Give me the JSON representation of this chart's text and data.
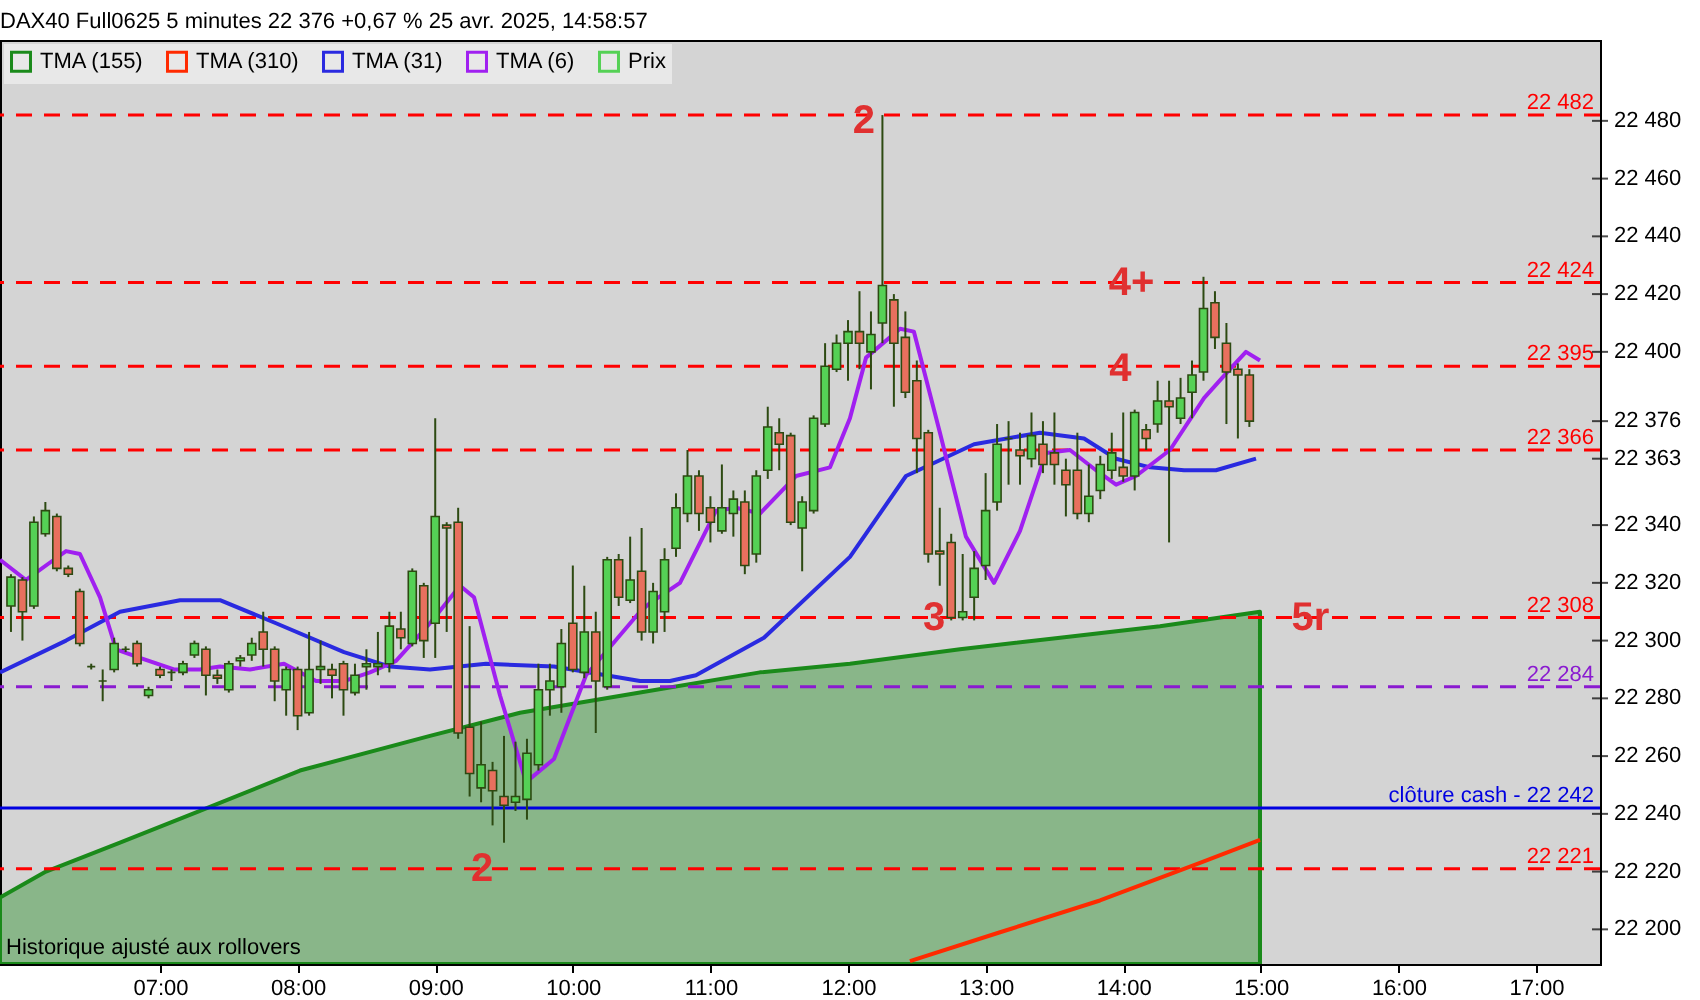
{
  "chart_data": {
    "type": "candlestick",
    "title": "DAX40 Full0625 5 minutes 22 376 +0,67 % 25 avr. 2025, 14:58:57",
    "xlim": [
      5.837,
      17.465
    ],
    "xticks": [
      {
        "value": 7,
        "label": "07:00"
      },
      {
        "value": 8,
        "label": "08:00"
      },
      {
        "value": 9,
        "label": "09:00"
      },
      {
        "value": 10,
        "label": "10:00"
      },
      {
        "value": 11,
        "label": "11:00"
      },
      {
        "value": 12,
        "label": "12:00"
      },
      {
        "value": 13,
        "label": "13:00"
      },
      {
        "value": 14,
        "label": "14:00"
      },
      {
        "value": 15,
        "label": "15:00"
      },
      {
        "value": 16,
        "label": "16:00"
      },
      {
        "value": 17,
        "label": "17:00"
      }
    ],
    "ylim": [
      22188,
      22508
    ],
    "yticks": [
      {
        "value": 22200,
        "label": "22 200"
      },
      {
        "value": 22220,
        "label": "22 220"
      },
      {
        "value": 22240,
        "label": "22 240"
      },
      {
        "value": 22260,
        "label": "22 260"
      },
      {
        "value": 22280,
        "label": "22 280"
      },
      {
        "value": 22300,
        "label": "22 300"
      },
      {
        "value": 22320,
        "label": "22 320"
      },
      {
        "value": 22340,
        "label": "22 340"
      },
      {
        "value": 22363,
        "label": "22 363"
      },
      {
        "value": 22376,
        "label": "22 376"
      },
      {
        "value": 22400,
        "label": "22 400"
      },
      {
        "value": 22420,
        "label": "22 420"
      },
      {
        "value": 22440,
        "label": "22 440"
      },
      {
        "value": 22460,
        "label": "22 460"
      },
      {
        "value": 22480,
        "label": "22 480"
      }
    ],
    "legend": "top left",
    "series": [
      {
        "name": "TMA (155)",
        "type": "area",
        "color": "#1a8a1a",
        "x": [
          5.837,
          6.171,
          6.709,
          7.29,
          8.017,
          8.962,
          9.616,
          10.488,
          11.36,
          12.014,
          12.814,
          13.541,
          14.267,
          14.994
        ],
        "values": [
          22211,
          22220,
          22230,
          22241,
          22255,
          22267,
          22275,
          22282,
          22289,
          22292,
          22297,
          22301,
          22305,
          22310
        ]
      },
      {
        "name": "TMA (310)",
        "type": "line",
        "color": "#ff2a00",
        "x": [
          12.45,
          13.105,
          13.831,
          14.558,
          14.994
        ],
        "values": [
          22189,
          22199,
          22210,
          22223,
          22231
        ]
      },
      {
        "name": "TMA (31)",
        "type": "line",
        "color": "#2a2ae0",
        "x": [
          5.837,
          6.317,
          6.709,
          7.145,
          7.436,
          7.843,
          8.337,
          8.671,
          8.962,
          9.369,
          9.863,
          10.488,
          10.706,
          10.895,
          11.389,
          12.014,
          12.421,
          12.916,
          13.395,
          13.715,
          13.948,
          14.195,
          14.442,
          14.674,
          14.965
        ],
        "values": [
          22289,
          22300,
          22310,
          22314,
          22314,
          22306,
          22296,
          22291,
          22290,
          22292,
          22291,
          22286,
          22286,
          22288,
          22301,
          22329,
          22357,
          22368,
          22372,
          22370,
          22363,
          22360,
          22359,
          22359,
          22363
        ]
      },
      {
        "name": "TMA (6)",
        "type": "line",
        "color": "#a020f0",
        "x": [
          5.837,
          6.026,
          6.229,
          6.317,
          6.418,
          6.564,
          6.68,
          6.854,
          7.101,
          7.29,
          7.436,
          7.654,
          7.901,
          8.134,
          8.337,
          8.526,
          8.715,
          8.962,
          9.18,
          9.282,
          9.471,
          9.66,
          9.863,
          10.096,
          10.488,
          10.561,
          10.779,
          11.041,
          11.186,
          11.36,
          11.622,
          11.869,
          12.014,
          12.131,
          12.378,
          12.479,
          12.668,
          12.857,
          13.061,
          13.25,
          13.439,
          13.613,
          13.802,
          13.948,
          14.093,
          14.34,
          14.587,
          14.776,
          14.892,
          14.994
        ],
        "values": [
          22328,
          22321,
          22328,
          22331,
          22330,
          22315,
          22297,
          22294,
          22290,
          22290,
          22291,
          22290,
          22292,
          22286,
          22286,
          22289,
          22293,
          22306,
          22319,
          22315,
          22281,
          22251,
          22259,
          22288,
          22310,
          22313,
          22320,
          22345,
          22346,
          22344,
          22357,
          22360,
          22377,
          22398,
          22408,
          22407,
          22372,
          22336,
          22320,
          22338,
          22365,
          22366,
          22359,
          22354,
          22357,
          22366,
          22384,
          22394,
          22400,
          22397
        ]
      },
      {
        "name": "Prix",
        "type": "candlestick",
        "color": "#55d155",
        "x": [
          5.9167,
          6,
          6.0833,
          6.1667,
          6.25,
          6.3333,
          6.4167,
          6.5,
          6.5833,
          6.6667,
          6.75,
          6.8333,
          6.9167,
          7,
          7.0833,
          7.1667,
          7.25,
          7.3333,
          7.4167,
          7.5,
          7.5833,
          7.6667,
          7.75,
          7.8333,
          7.9167,
          8,
          8.0833,
          8.1667,
          8.25,
          8.3333,
          8.4167,
          8.5,
          8.5833,
          8.6667,
          8.75,
          8.8333,
          8.9167,
          9,
          9.0833,
          9.1667,
          9.25,
          9.3333,
          9.4167,
          9.5,
          9.5833,
          9.6667,
          9.75,
          9.8333,
          9.9167,
          10,
          10.0833,
          10.1667,
          10.25,
          10.3333,
          10.4167,
          10.5,
          10.5833,
          10.6667,
          10.75,
          10.8333,
          10.9167,
          11,
          11.0833,
          11.1667,
          11.25,
          11.3333,
          11.4167,
          11.5,
          11.5833,
          11.6667,
          11.75,
          11.8333,
          11.9167,
          12,
          12.0833,
          12.1667,
          12.25,
          12.3333,
          12.4167,
          12.5,
          12.5833,
          12.6667,
          12.75,
          12.8333,
          12.9167,
          13,
          13.0833,
          13.1667,
          13.25,
          13.3333,
          13.4167,
          13.5,
          13.5833,
          13.6667,
          13.75,
          13.8333,
          13.9167,
          14,
          14.0833,
          14.1667,
          14.25,
          14.3333,
          14.4167,
          14.5,
          14.5833,
          14.6667,
          14.75,
          14.8333,
          14.9167
        ],
        "ohlc": [
          [
            22312,
            22323,
            22303,
            22322
          ],
          [
            22321,
            22322,
            22300,
            22310
          ],
          [
            22312,
            22343,
            22311,
            22341
          ],
          [
            22337,
            22348,
            22336,
            22345
          ],
          [
            22343,
            22344,
            22324,
            22325
          ],
          [
            22325,
            22326,
            22322,
            22323
          ],
          [
            22317,
            22318,
            22298,
            22299
          ],
          [
            22291,
            22292,
            22290,
            22291
          ],
          [
            22286,
            22290,
            22279,
            22286
          ],
          [
            22290,
            22301,
            22289,
            22299
          ],
          [
            22297,
            22298,
            22296,
            22297
          ],
          [
            22299,
            22300,
            22291,
            22292
          ],
          [
            22281,
            22284,
            22280,
            22283
          ],
          [
            22290,
            22291,
            22287,
            22288
          ],
          [
            22289,
            22290,
            22286,
            22289
          ],
          [
            22289,
            22293,
            22288,
            22292
          ],
          [
            22295,
            22300,
            22294,
            22299
          ],
          [
            22297,
            22298,
            22281,
            22288
          ],
          [
            22288,
            22290,
            22285,
            22287
          ],
          [
            22283,
            22293,
            22282,
            22292
          ],
          [
            22293,
            22295,
            22291,
            22294
          ],
          [
            22295,
            22301,
            22293,
            22299
          ],
          [
            22303,
            22310,
            22291,
            22297
          ],
          [
            22297,
            22298,
            22279,
            22286
          ],
          [
            22283,
            22291,
            22274,
            22290
          ],
          [
            22290,
            22291,
            22269,
            22274
          ],
          [
            22275,
            22303,
            22274,
            22290
          ],
          [
            22290,
            22300,
            22285,
            22291
          ],
          [
            22290,
            22292,
            22280,
            22288
          ],
          [
            22292,
            22293,
            22274,
            22283
          ],
          [
            22282,
            22292,
            22281,
            22288
          ],
          [
            22291,
            22297,
            22283,
            22292
          ],
          [
            22291,
            22303,
            22288,
            22292
          ],
          [
            22292,
            22310,
            22289,
            22305
          ],
          [
            22304,
            22310,
            22297,
            22301
          ],
          [
            22299,
            22325,
            22298,
            22324
          ],
          [
            22319,
            22320,
            22294,
            22300
          ],
          [
            22306,
            22377,
            22294,
            22343
          ],
          [
            22340,
            22341,
            22303,
            22339
          ],
          [
            22341,
            22346,
            22266,
            22268
          ],
          [
            22270,
            22305,
            22246,
            22254
          ],
          [
            22249,
            22272,
            22244,
            22257
          ],
          [
            22255,
            22258,
            22236,
            22248
          ],
          [
            22246,
            22267,
            22230,
            22243
          ],
          [
            22244,
            22265,
            22241,
            22246
          ],
          [
            22245,
            22266,
            22238,
            22261
          ],
          [
            22257,
            22292,
            22255,
            22283
          ],
          [
            22283,
            22292,
            22274,
            22286
          ],
          [
            22284,
            22304,
            22275,
            22299
          ],
          [
            22306,
            22326,
            22289,
            22290
          ],
          [
            22289,
            22319,
            22287,
            22303
          ],
          [
            22303,
            22310,
            22268,
            22286
          ],
          [
            22284,
            22329,
            22283,
            22328
          ],
          [
            22328,
            22330,
            22312,
            22315
          ],
          [
            22314,
            22336,
            22313,
            22321
          ],
          [
            22324,
            22339,
            22300,
            22303
          ],
          [
            22303,
            22320,
            22299,
            22317
          ],
          [
            22310,
            22332,
            22303,
            22328
          ],
          [
            22332,
            22351,
            22329,
            22346
          ],
          [
            22344,
            22366,
            22341,
            22357
          ],
          [
            22357,
            22359,
            22338,
            22344
          ],
          [
            22346,
            22350,
            22334,
            22341
          ],
          [
            22338,
            22361,
            22337,
            22346
          ],
          [
            22344,
            22352,
            22336,
            22349
          ],
          [
            22348,
            22352,
            22323,
            22326
          ],
          [
            22330,
            22359,
            22327,
            22357
          ],
          [
            22359,
            22381,
            22356,
            22374
          ],
          [
            22372,
            22377,
            22359,
            22368
          ],
          [
            22371,
            22372,
            22340,
            22341
          ],
          [
            22339,
            22350,
            22324,
            22348
          ],
          [
            22345,
            22378,
            22344,
            22377
          ],
          [
            22375,
            22403,
            22374,
            22395
          ],
          [
            22394,
            22406,
            22393,
            22403
          ],
          [
            22403,
            22411,
            22390,
            22407
          ],
          [
            22407,
            22421,
            22394,
            22403
          ],
          [
            22400,
            22414,
            22387,
            22406
          ],
          [
            22410,
            22482,
            22403,
            22423
          ],
          [
            22418,
            22420,
            22381,
            22403
          ],
          [
            22405,
            22414,
            22384,
            22386
          ],
          [
            22390,
            22397,
            22358,
            22370
          ],
          [
            22372,
            22373,
            22327,
            22330
          ],
          [
            22331,
            22346,
            22319,
            22330
          ],
          [
            22334,
            22337,
            22307,
            22308
          ],
          [
            22308,
            22330,
            22307,
            22310
          ],
          [
            22315,
            22331,
            22307,
            22325
          ],
          [
            22326,
            22358,
            22321,
            22345
          ],
          [
            22348,
            22375,
            22345,
            22368
          ],
          [
            22370,
            22376,
            22354,
            22370
          ],
          [
            22366,
            22372,
            22354,
            22364
          ],
          [
            22363,
            22379,
            22360,
            22371
          ],
          [
            22368,
            22376,
            22358,
            22361
          ],
          [
            22365,
            22379,
            22354,
            22361
          ],
          [
            22359,
            22363,
            22343,
            22354
          ],
          [
            22359,
            22372,
            22342,
            22344
          ],
          [
            22344,
            22361,
            22341,
            22350
          ],
          [
            22352,
            22364,
            22349,
            22361
          ],
          [
            22359,
            22372,
            22356,
            22365
          ],
          [
            22360,
            22379,
            22355,
            22357
          ],
          [
            22357,
            22380,
            22352,
            22379
          ],
          [
            22373,
            22375,
            22366,
            22370
          ],
          [
            22375,
            22390,
            22372,
            22383
          ],
          [
            22383,
            22390,
            22334,
            22381
          ],
          [
            22377,
            22391,
            22375,
            22384
          ],
          [
            22386,
            22397,
            22377,
            22392
          ],
          [
            22393,
            22426,
            22390,
            22415
          ],
          [
            22417,
            22421,
            22401,
            22405
          ],
          [
            22403,
            22410,
            22375,
            22393
          ],
          [
            22394,
            22396,
            22370,
            22392
          ],
          [
            22392,
            22394,
            22374,
            22376
          ]
        ],
        "colors": [
          "#55d155",
          "#e8705e",
          "#55d155",
          "#55d155",
          "#e8705e",
          "#e8705e",
          "#e8705e",
          "#2d4a12",
          "#2d4a12",
          "#55d155",
          "#2d4a12",
          "#e8705e",
          "#55d155",
          "#e8705e",
          "#2d4a12",
          "#55d155",
          "#55d155",
          "#e8705e",
          "#e8705e",
          "#55d155",
          "#55d155",
          "#55d155",
          "#e8705e",
          "#e8705e",
          "#55d155",
          "#e8705e",
          "#55d155",
          "#55d155",
          "#e8705e",
          "#e8705e",
          "#55d155",
          "#55d155",
          "#55d155",
          "#55d155",
          "#e8705e",
          "#55d155",
          "#e8705e",
          "#55d155",
          "#e8705e",
          "#e8705e",
          "#e8705e",
          "#55d155",
          "#e8705e",
          "#e8705e",
          "#55d155",
          "#55d155",
          "#55d155",
          "#55d155",
          "#55d155",
          "#e8705e",
          "#55d155",
          "#e8705e",
          "#55d155",
          "#e8705e",
          "#55d155",
          "#e8705e",
          "#55d155",
          "#55d155",
          "#55d155",
          "#55d155",
          "#e8705e",
          "#e8705e",
          "#55d155",
          "#55d155",
          "#e8705e",
          "#55d155",
          "#55d155",
          "#e8705e",
          "#e8705e",
          "#55d155",
          "#55d155",
          "#55d155",
          "#55d155",
          "#55d155",
          "#e8705e",
          "#55d155",
          "#55d155",
          "#e8705e",
          "#e8705e",
          "#e8705e",
          "#e8705e",
          "#e8705e",
          "#e8705e",
          "#55d155",
          "#55d155",
          "#55d155",
          "#55d155",
          "#2d4a12",
          "#e8705e",
          "#55d155",
          "#e8705e",
          "#e8705e",
          "#e8705e",
          "#e8705e",
          "#55d155",
          "#55d155",
          "#55d155",
          "#e8705e",
          "#55d155",
          "#e8705e",
          "#55d155",
          "#e8705e",
          "#55d155",
          "#55d155",
          "#55d155",
          "#e8705e",
          "#e8705e",
          "#e8705e",
          "#e8705e"
        ]
      }
    ],
    "ref_lines": [
      {
        "axis": "y",
        "value": 22482,
        "label": "22 482",
        "color": "#ff0000",
        "line_style": "dashed"
      },
      {
        "axis": "y",
        "value": 22424,
        "label": "22 424",
        "color": "#ff0000",
        "line_style": "dashed"
      },
      {
        "axis": "y",
        "value": 22395,
        "label": "22 395",
        "color": "#ff0000",
        "line_style": "dashed"
      },
      {
        "axis": "y",
        "value": 22366,
        "label": "22 366",
        "color": "#ff0000",
        "line_style": "dashed"
      },
      {
        "axis": "y",
        "value": 22308,
        "label": "22 308",
        "color": "#ff0000",
        "line_style": "dashed"
      },
      {
        "axis": "y",
        "value": 22284,
        "label": "22 284",
        "color": "#8a1ad0",
        "line_style": "dashed"
      },
      {
        "axis": "y",
        "value": 22242,
        "label": "clôture cash -  22 242",
        "color": "#0000e0",
        "line_style": "solid"
      },
      {
        "axis": "y",
        "value": 22221,
        "label": "22 221",
        "color": "#ff0000",
        "line_style": "dashed"
      }
    ],
    "annotations": [
      {
        "text": "2",
        "x": 12.116,
        "y": 22480
      },
      {
        "text": "2",
        "x": 9.34,
        "y": 22221
      },
      {
        "text": "3",
        "x": 12.625,
        "y": 22308
      },
      {
        "text": "4+",
        "x": 14.06,
        "y": 22424
      },
      {
        "text": "4",
        "x": 13.98,
        "y": 22394
      },
      {
        "text": "5r",
        "x": 15.36,
        "y": 22308
      },
      "Historique ajusté aux rollovers"
    ]
  }
}
